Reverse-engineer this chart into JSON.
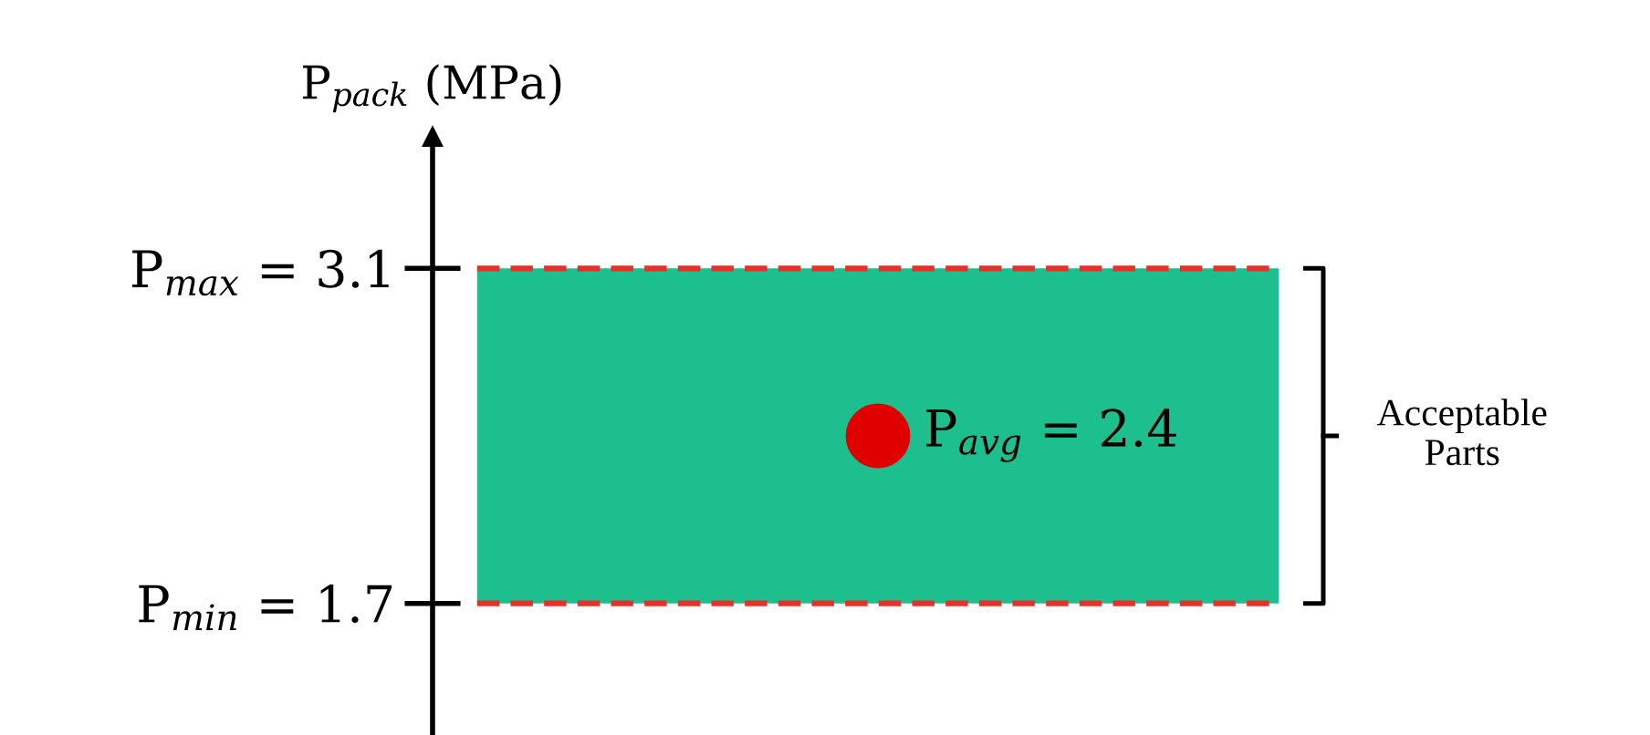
{
  "chart_data": {
    "type": "scatter",
    "ylabel": "P$_{pack}$ (MPa)",
    "categories": [
      null
    ],
    "series": [
      {
        "color": "#e00000",
        "values": [
          2.4
        ]
      }
    ],
    "marker": "circle",
    "ylim": [
      1.15,
      3.65
    ],
    "yticks": [
      {
        "value": 1.7,
        "label": "P$_{min}$ = 1.7"
      },
      {
        "value": 3.1,
        "label": "P$_{max}$ = 3.1"
      }
    ],
    "annotations": [
      "P$_{avg}$ = 2.4"
    ],
    "bands": [
      {
        "axis": "y",
        "from": 1.7,
        "to": 3.1,
        "label": "Acceptable\nParts",
        "color": "#1dbf8e"
      }
    ],
    "ref_lines": [
      {
        "axis": "y",
        "value": 1.7,
        "color": "#e8302a",
        "line_style": "dashed"
      },
      {
        "axis": "y",
        "value": 3.1,
        "color": "#e8302a",
        "line_style": "dashed"
      }
    ],
    "grid": false,
    "legend": false,
    "tick_labels": "y"
  }
}
